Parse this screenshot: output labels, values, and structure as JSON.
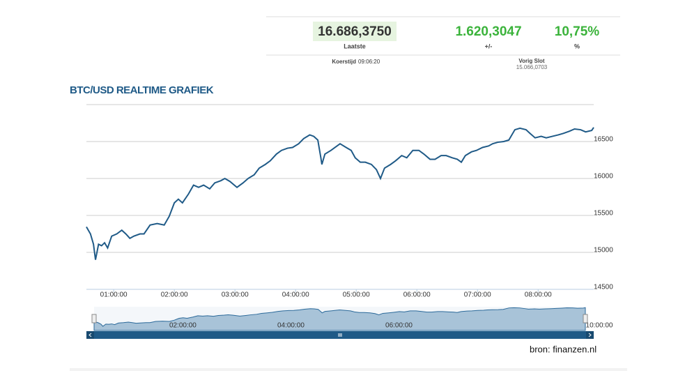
{
  "quote": {
    "last": "16.686,3750",
    "last_label": "Laatste",
    "change": "1.620,3047",
    "change_label": "+/-",
    "pct": "10,75%",
    "pct_label": "%",
    "time_label": "Koerstijd",
    "time": "09:06:20",
    "prev_label": "Vorig Slot",
    "prev": "15.066,0703"
  },
  "chart_data": {
    "type": "line",
    "title": "BTC/USD REALTIME GRAFIEK",
    "x": [
      33,
      37,
      40,
      42,
      45,
      48,
      51,
      54,
      58,
      63,
      68,
      72,
      76,
      80,
      86,
      90,
      96,
      103,
      110,
      115,
      120,
      124,
      128,
      134,
      139,
      144,
      149,
      155,
      160,
      166,
      170,
      175,
      182,
      188,
      193,
      199,
      204,
      210,
      215,
      221,
      226,
      232,
      237,
      243,
      248,
      254,
      258,
      262,
      265,
      266,
      269,
      275,
      279,
      284,
      290,
      295,
      299,
      304,
      309,
      315,
      320,
      324,
      328,
      334,
      339,
      345,
      350,
      356,
      362,
      367,
      373,
      378,
      384,
      389,
      395,
      400,
      404,
      408,
      414,
      419,
      425,
      431,
      435,
      440,
      446,
      451,
      457,
      462,
      468,
      472,
      477,
      483,
      488,
      494,
      500,
      505,
      511,
      516,
      522,
      527,
      533,
      535
    ],
    "series": [
      {
        "color": "#1f5a87",
        "values": [
          15345,
          15250,
          15110,
          14900,
          15110,
          15090,
          15130,
          15060,
          15220,
          15250,
          15300,
          15250,
          15190,
          15220,
          15250,
          15250,
          15370,
          15390,
          15370,
          15490,
          15670,
          15720,
          15670,
          15790,
          15910,
          15880,
          15910,
          15860,
          15940,
          15970,
          16000,
          15960,
          15880,
          15940,
          16000,
          16050,
          16140,
          16190,
          16240,
          16330,
          16380,
          16410,
          16420,
          16470,
          16540,
          16590,
          16570,
          16520,
          16280,
          16190,
          16330,
          16380,
          16420,
          16470,
          16420,
          16380,
          16280,
          16220,
          16220,
          16190,
          16120,
          16000,
          16140,
          16190,
          16240,
          16310,
          16280,
          16380,
          16380,
          16330,
          16260,
          16260,
          16310,
          16310,
          16280,
          16260,
          16220,
          16310,
          16360,
          16380,
          16420,
          16440,
          16470,
          16490,
          16500,
          16520,
          16660,
          16680,
          16660,
          16610,
          16550,
          16570,
          16550,
          16570,
          16590,
          16610,
          16640,
          16670,
          16660,
          16630,
          16650,
          16690
        ]
      }
    ],
    "xlim": [
      33,
      535
    ],
    "ylim": [
      14500,
      17000
    ],
    "xticks": [
      {
        "value": 60,
        "label": "01:00:00"
      },
      {
        "value": 120,
        "label": "02:00:00"
      },
      {
        "value": 180,
        "label": "03:00:00"
      },
      {
        "value": 240,
        "label": "04:00:00"
      },
      {
        "value": 300,
        "label": "05:00:00"
      },
      {
        "value": 360,
        "label": "06:00:00"
      },
      {
        "value": 420,
        "label": "07:00:00"
      },
      {
        "value": 480,
        "label": "08:00:00"
      }
    ],
    "yticks": [
      14500,
      15000,
      15500,
      16000,
      16500
    ],
    "grid": true,
    "navigator": {
      "xticks": [
        {
          "value": 120,
          "label": "02:00:00"
        },
        {
          "value": 240,
          "label": "04:00:00"
        },
        {
          "value": 360,
          "label": "06:00:00"
        },
        {
          "value": 600,
          "label": "10:00:00"
        }
      ]
    }
  },
  "source": "bron: finanzen.nl"
}
